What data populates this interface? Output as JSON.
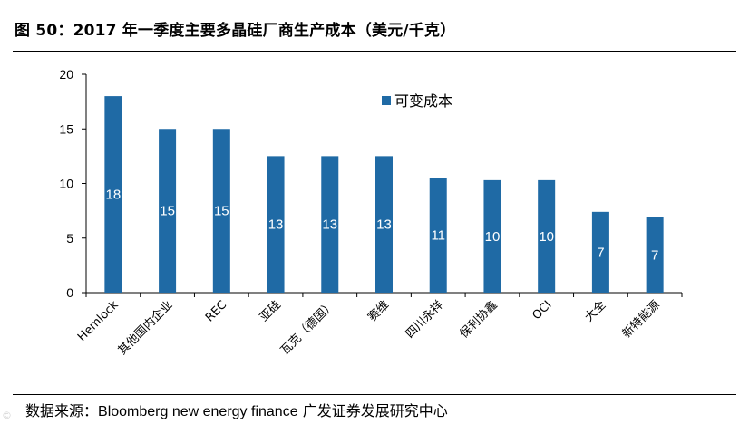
{
  "figure": {
    "title": "图 50：2017 年一季度主要多晶硅厂商生产成本（美元/千克）",
    "source_label": "数据来源：",
    "source_text": "Bloomberg new energy finance",
    "source_org": "广发证券发展研究中心"
  },
  "chart_data": {
    "type": "bar",
    "categories": [
      "Hemlock",
      "其他国内企业",
      "REC",
      "亚硅",
      "瓦克（德国）",
      "赛维",
      "四川永祥",
      "保利协鑫",
      "OCI",
      "大全",
      "新特能源"
    ],
    "series": [
      {
        "name": "可变成本",
        "values": [
          18,
          15,
          15,
          12.5,
          12.5,
          12.5,
          10.5,
          10.3,
          10.3,
          7.4,
          6.9
        ],
        "data_labels": [
          "18",
          "15",
          "15",
          "13",
          "13",
          "13",
          "11",
          "10",
          "10",
          "7",
          "7"
        ],
        "color": "#1F6AA5"
      }
    ],
    "ylim": [
      0,
      20
    ],
    "yticks": [
      "0",
      "5",
      "10",
      "15",
      "20"
    ],
    "ytick_values": [
      0,
      5,
      10,
      15,
      20
    ],
    "grid": false,
    "legend_position": "top-center"
  }
}
